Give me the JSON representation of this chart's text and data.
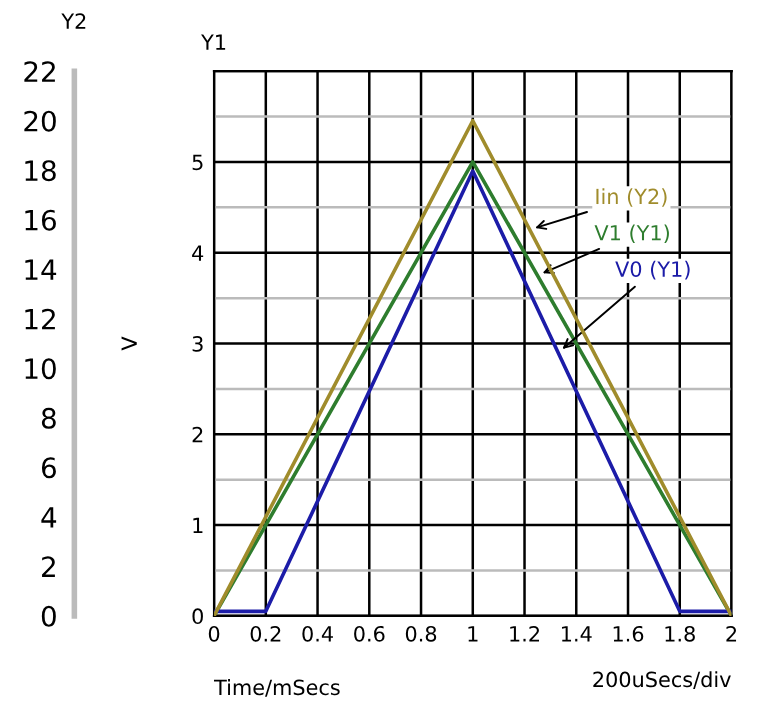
{
  "chart_data": {
    "type": "line",
    "xlabel": "Time/mSecs",
    "ylabel": "V",
    "y2label": "Y2",
    "x": [
      0,
      0.2,
      1,
      1.8,
      2
    ],
    "series": [
      {
        "name": "Iin (Y2)",
        "color": "#a08c2c",
        "axis": "y2",
        "values": [
          0,
          4,
          20,
          4,
          0
        ]
      },
      {
        "name": "V1 (Y1)",
        "color": "#2e7d2e",
        "values": [
          0,
          1,
          5,
          1,
          0
        ]
      },
      {
        "name": "V0 (Y1)",
        "color": "#1c1ca8",
        "values": [
          0.05,
          0.05,
          4.9,
          0.05,
          0.05
        ]
      }
    ],
    "xlim": [
      0,
      2
    ],
    "xticks": [
      0,
      0.2,
      0.4,
      0.6,
      0.8,
      1,
      1.2,
      1.4,
      1.6,
      1.8,
      2
    ],
    "ylim": [
      0,
      6
    ],
    "yticks": [
      0,
      {
        "value": 0.5,
        "label": null
      },
      1,
      {
        "value": 1.5,
        "label": null
      },
      2,
      {
        "value": 2.5,
        "label": null
      },
      3,
      {
        "value": 3.5,
        "label": null
      },
      4,
      {
        "value": 4.5,
        "label": null
      },
      5,
      {
        "value": 5.5,
        "label": null
      }
    ],
    "y2lim": [
      0,
      22
    ],
    "y2ticks": [
      0,
      2,
      4,
      6,
      8,
      10,
      12,
      14,
      16,
      18,
      20,
      22
    ],
    "grid": true,
    "legend": false,
    "marker": "none",
    "line_style": "solid",
    "annotations": [
      "Y1",
      "200uSecs/div"
    ]
  }
}
